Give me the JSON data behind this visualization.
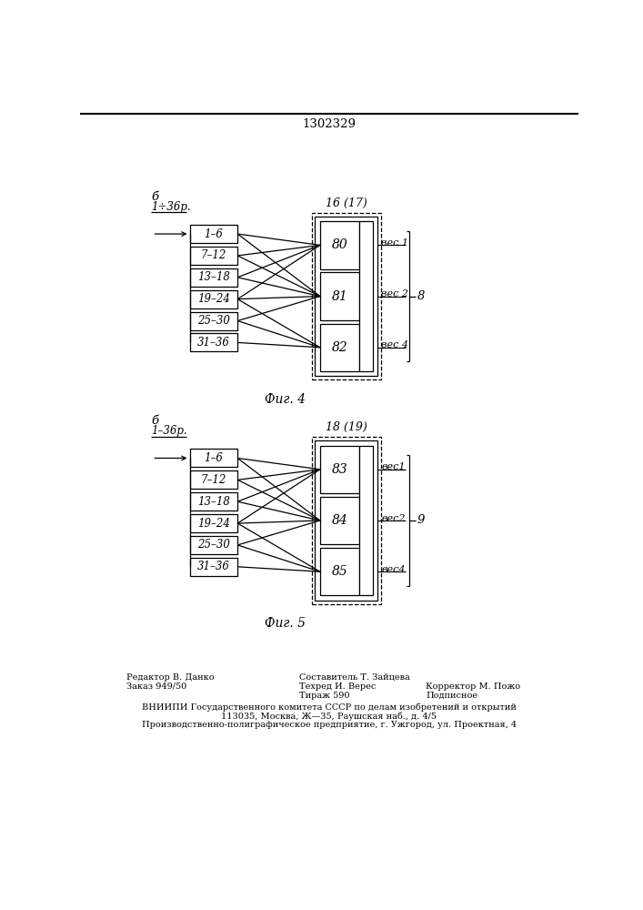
{
  "bg_color": "#ffffff",
  "line_color": "#000000",
  "title": "1302329",
  "fig4_label": "Фиг. 4",
  "fig5_label": "Фиг. 5",
  "fig4_header_b": "б",
  "fig4_header_range": "1÷36р.",
  "fig4_block_label": "16 (17)",
  "fig4_right_label": "8",
  "fig4_rows": [
    "1–6",
    "7–12",
    "13–18",
    "19–24",
    "25–30",
    "31–36"
  ],
  "fig4_blocks": [
    "80",
    "81",
    "82"
  ],
  "fig4_weights": [
    "вес 1",
    "вес 2",
    "вес 4"
  ],
  "fig5_header_b": "б",
  "fig5_header_range": "1–36р.",
  "fig5_block_label": "18 (19)",
  "fig5_right_label": "9",
  "fig5_rows": [
    "1–6",
    "7–12",
    "13–18",
    "19–24",
    "25–30",
    "31–36"
  ],
  "fig5_blocks": [
    "83",
    "84",
    "85"
  ],
  "fig5_weights": [
    "вес1",
    "вес2",
    "вес4"
  ],
  "footer_left_line1": "Редактор В. Данко",
  "footer_left_line2": "Заказ 949/50",
  "footer_center_line1": "Составитель Т. Зайцева",
  "footer_center_line2": "Техред И. Верес",
  "footer_center_line3": "Тираж 590",
  "footer_right_line2": "Корректор М. Пожо",
  "footer_right_line3": "Подписное",
  "footer_full1": "ВНИИПИ Государственного комитета СССР по делам изобретений и открытий",
  "footer_full2": "113035, Москва, Ж—35, Раушская наб., д. 4/5",
  "footer_full3": "Производственно-полиграфическое предприятие, г. Ужгород, ул. Проектная, 4"
}
